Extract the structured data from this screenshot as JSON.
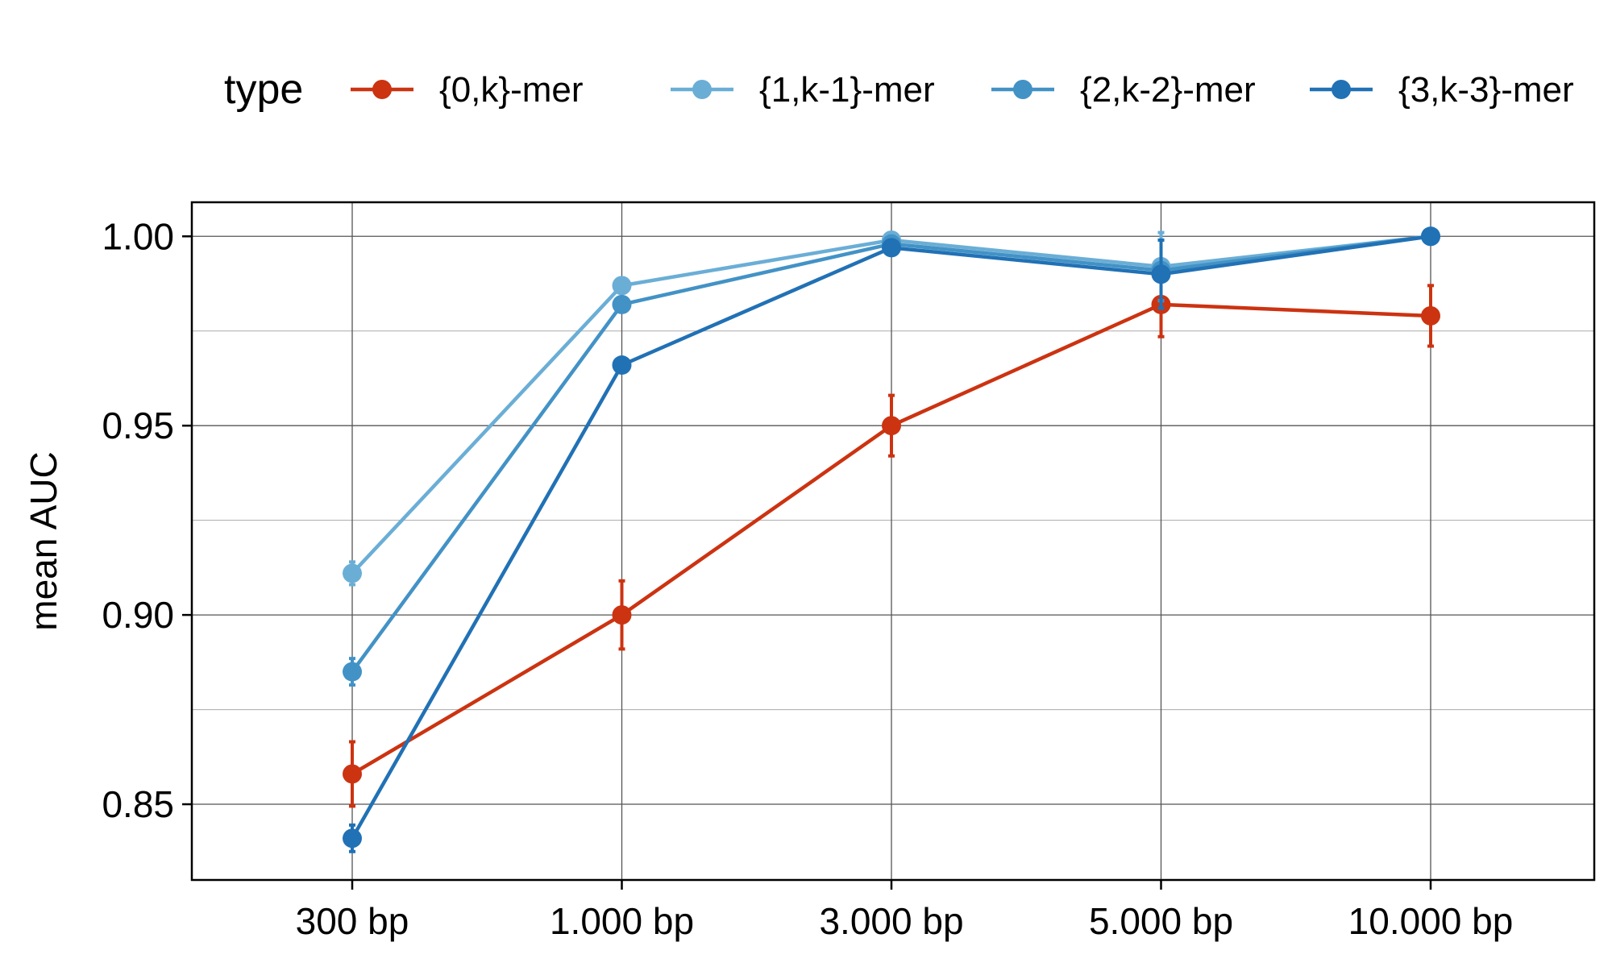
{
  "chart_data": {
    "type": "line",
    "categories": [
      "300 bp",
      "1.000 bp",
      "3.000 bp",
      "5.000 bp",
      "10.000 bp"
    ],
    "xlabel": "",
    "ylabel": "mean AUC",
    "ylim": [
      0.83,
      1.009
    ],
    "yticks": [
      0.85,
      0.9,
      0.95,
      1.0
    ],
    "ytick_labels": [
      "0.85",
      "0.90",
      "0.95",
      "1.00"
    ],
    "grid": true,
    "legend": {
      "title": "type",
      "position": "top"
    },
    "series": [
      {
        "name": "{0,k}-mer",
        "color": "#cc3311",
        "values": [
          0.858,
          0.9,
          0.95,
          0.982,
          0.979
        ],
        "err": [
          0.0085,
          0.009,
          0.008,
          0.0085,
          0.008
        ]
      },
      {
        "name": "{1,k-1}-mer",
        "color": "#6aaed6",
        "values": [
          0.911,
          0.987,
          0.999,
          0.992,
          1.0
        ],
        "err": [
          0.003,
          0.001,
          0.001,
          0.009,
          0.0005
        ]
      },
      {
        "name": "{2,k-2}-mer",
        "color": "#4292c6",
        "values": [
          0.885,
          0.982,
          0.998,
          0.991,
          1.0
        ],
        "err": [
          0.0035,
          0.001,
          0.001,
          0.008,
          0.0005
        ]
      },
      {
        "name": "{3,k-3}-mer",
        "color": "#2171b5",
        "values": [
          0.841,
          0.966,
          0.997,
          0.99,
          1.0
        ],
        "err": [
          0.0035,
          0.001,
          0.001,
          0.009,
          0.0005
        ]
      }
    ]
  }
}
